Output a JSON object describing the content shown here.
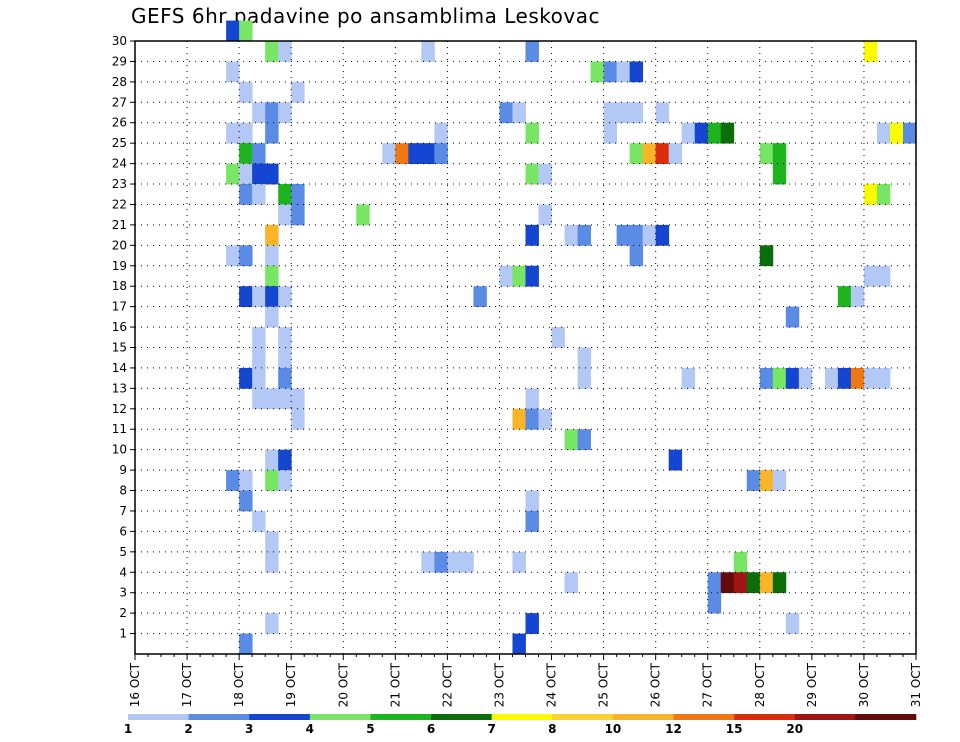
{
  "chart_data": {
    "type": "heatmap",
    "title": "GEFS 6hr padavine po ansamblima Leskovac",
    "xlabel": "",
    "ylabel": "",
    "x_ticks": [
      "16 OCT",
      "17 OCT",
      "18 OCT",
      "19 OCT",
      "20 OCT",
      "21 OCT",
      "22 OCT",
      "23 OCT",
      "24 OCT",
      "25 OCT",
      "26 OCT",
      "27 OCT",
      "28 OCT",
      "29 OCT",
      "30 OCT",
      "31 OCT"
    ],
    "y_ticks": [
      "1",
      "2",
      "3",
      "4",
      "5",
      "6",
      "7",
      "8",
      "9",
      "10",
      "11",
      "12",
      "13",
      "14",
      "15",
      "16",
      "17",
      "18",
      "19",
      "20",
      "21",
      "22",
      "23",
      "24",
      "25",
      "26",
      "27",
      "28",
      "29",
      "30"
    ],
    "xlim_days": [
      16,
      31
    ],
    "ylim": [
      0,
      30
    ],
    "time_step_hours": 6,
    "grid": "dotted",
    "colorbar": {
      "bounds": [
        1,
        2,
        3,
        4,
        5,
        6,
        7,
        8,
        10,
        12,
        15,
        20
      ],
      "labels": [
        "1",
        "2",
        "3",
        "4",
        "5",
        "6",
        "7",
        "8",
        "10",
        "12",
        "15",
        "20"
      ],
      "colors": [
        "#b4c8f5",
        "#5a8ce6",
        "#1446d2",
        "#78e664",
        "#1eb41e",
        "#0a6e0a",
        "#fafa00",
        "#fad232",
        "#fab428",
        "#f07814",
        "#dc2d0a",
        "#a01414",
        "#640a0a"
      ]
    },
    "cells_note": "each cell: [day of October at start of 6-hour step, ensemble member, precipitation class 0-12 (index into colorbar.colors)]",
    "cells": [
      [
        17.75,
        30,
        2
      ],
      [
        18.0,
        30,
        3
      ],
      [
        18.5,
        29,
        3
      ],
      [
        18.75,
        29,
        0
      ],
      [
        21.5,
        29,
        0
      ],
      [
        23.5,
        29,
        1
      ],
      [
        30.0,
        29,
        6
      ],
      [
        17.75,
        28,
        0
      ],
      [
        24.75,
        28,
        3
      ],
      [
        25.0,
        28,
        1
      ],
      [
        25.25,
        28,
        0
      ],
      [
        25.5,
        28,
        2
      ],
      [
        18.0,
        27,
        0
      ],
      [
        19.0,
        27,
        0
      ],
      [
        18.25,
        26,
        0
      ],
      [
        18.5,
        26,
        1
      ],
      [
        18.75,
        26,
        0
      ],
      [
        23.0,
        26,
        1
      ],
      [
        23.25,
        26,
        0
      ],
      [
        25.0,
        26,
        0
      ],
      [
        25.25,
        26,
        0
      ],
      [
        25.5,
        26,
        0
      ],
      [
        26.0,
        26,
        0
      ],
      [
        17.75,
        25,
        0
      ],
      [
        18.0,
        25,
        0
      ],
      [
        18.5,
        25,
        1
      ],
      [
        21.75,
        25,
        0
      ],
      [
        23.5,
        25,
        3
      ],
      [
        25.0,
        25,
        0
      ],
      [
        26.5,
        25,
        0
      ],
      [
        26.75,
        25,
        2
      ],
      [
        27.0,
        25,
        4
      ],
      [
        27.25,
        25,
        5
      ],
      [
        30.25,
        25,
        0
      ],
      [
        30.5,
        25,
        6
      ],
      [
        30.75,
        25,
        1
      ],
      [
        18.0,
        24,
        4
      ],
      [
        18.25,
        24,
        1
      ],
      [
        20.75,
        24,
        0
      ],
      [
        21.0,
        24,
        9
      ],
      [
        21.25,
        24,
        2
      ],
      [
        21.5,
        24,
        2
      ],
      [
        21.75,
        24,
        1
      ],
      [
        25.5,
        24,
        3
      ],
      [
        25.75,
        24,
        8
      ],
      [
        26.0,
        24,
        10
      ],
      [
        26.25,
        24,
        0
      ],
      [
        28.0,
        24,
        3
      ],
      [
        28.25,
        24,
        4
      ],
      [
        17.75,
        23,
        3
      ],
      [
        18.0,
        23,
        0
      ],
      [
        18.25,
        23,
        2
      ],
      [
        18.5,
        23,
        2
      ],
      [
        23.5,
        23,
        3
      ],
      [
        23.75,
        23,
        0
      ],
      [
        28.25,
        23,
        4
      ],
      [
        18.0,
        22,
        1
      ],
      [
        18.25,
        22,
        0
      ],
      [
        18.75,
        22,
        4
      ],
      [
        19.0,
        22,
        1
      ],
      [
        30.0,
        22,
        6
      ],
      [
        30.25,
        22,
        3
      ],
      [
        18.75,
        21,
        0
      ],
      [
        19.0,
        21,
        1
      ],
      [
        20.25,
        21,
        3
      ],
      [
        23.75,
        21,
        0
      ],
      [
        18.5,
        20,
        8
      ],
      [
        23.5,
        20,
        2
      ],
      [
        24.25,
        20,
        0
      ],
      [
        24.5,
        20,
        1
      ],
      [
        25.25,
        20,
        1
      ],
      [
        25.5,
        20,
        1
      ],
      [
        25.75,
        20,
        0
      ],
      [
        26.0,
        20,
        2
      ],
      [
        17.75,
        19,
        0
      ],
      [
        18.0,
        19,
        1
      ],
      [
        18.5,
        19,
        0
      ],
      [
        25.5,
        19,
        1
      ],
      [
        28.0,
        19,
        5
      ],
      [
        18.5,
        18,
        3
      ],
      [
        23.0,
        18,
        0
      ],
      [
        23.25,
        18,
        3
      ],
      [
        23.5,
        18,
        2
      ],
      [
        30.0,
        18,
        0
      ],
      [
        30.25,
        18,
        0
      ],
      [
        18.0,
        17,
        2
      ],
      [
        18.25,
        17,
        0
      ],
      [
        18.5,
        17,
        2
      ],
      [
        18.75,
        17,
        0
      ],
      [
        22.5,
        17,
        1
      ],
      [
        29.5,
        17,
        4
      ],
      [
        29.75,
        17,
        0
      ],
      [
        18.5,
        16,
        0
      ],
      [
        28.5,
        16,
        1
      ],
      [
        18.25,
        15,
        0
      ],
      [
        18.75,
        15,
        0
      ],
      [
        24.0,
        15,
        0
      ],
      [
        18.25,
        14,
        0
      ],
      [
        18.75,
        14,
        0
      ],
      [
        24.5,
        14,
        0
      ],
      [
        18.0,
        13,
        2
      ],
      [
        18.25,
        13,
        0
      ],
      [
        18.75,
        13,
        1
      ],
      [
        24.5,
        13,
        0
      ],
      [
        26.5,
        13,
        0
      ],
      [
        28.0,
        13,
        1
      ],
      [
        28.25,
        13,
        3
      ],
      [
        28.5,
        13,
        2
      ],
      [
        28.75,
        13,
        0
      ],
      [
        29.25,
        13,
        0
      ],
      [
        29.5,
        13,
        2
      ],
      [
        29.75,
        13,
        9
      ],
      [
        30.0,
        13,
        0
      ],
      [
        30.25,
        13,
        0
      ],
      [
        18.25,
        12,
        0
      ],
      [
        18.5,
        12,
        0
      ],
      [
        18.75,
        12,
        0
      ],
      [
        19.0,
        12,
        0
      ],
      [
        23.5,
        12,
        0
      ],
      [
        19.0,
        11,
        0
      ],
      [
        23.25,
        11,
        8
      ],
      [
        23.5,
        11,
        1
      ],
      [
        23.75,
        11,
        0
      ],
      [
        24.25,
        10,
        3
      ],
      [
        24.5,
        10,
        1
      ],
      [
        18.5,
        9,
        0
      ],
      [
        18.75,
        9,
        2
      ],
      [
        26.25,
        9,
        2
      ],
      [
        17.75,
        8,
        1
      ],
      [
        18.0,
        8,
        0
      ],
      [
        18.5,
        8,
        3
      ],
      [
        18.75,
        8,
        0
      ],
      [
        27.75,
        8,
        1
      ],
      [
        28.0,
        8,
        8
      ],
      [
        28.25,
        8,
        0
      ],
      [
        18.0,
        7,
        1
      ],
      [
        23.5,
        7,
        0
      ],
      [
        18.25,
        6,
        0
      ],
      [
        23.5,
        6,
        1
      ],
      [
        18.5,
        5,
        0
      ],
      [
        18.5,
        4,
        0
      ],
      [
        21.5,
        4,
        0
      ],
      [
        21.75,
        4,
        1
      ],
      [
        22.0,
        4,
        0
      ],
      [
        22.25,
        4,
        0
      ],
      [
        23.25,
        4,
        0
      ],
      [
        27.5,
        4,
        3
      ],
      [
        24.25,
        3,
        0
      ],
      [
        27.0,
        3,
        1
      ],
      [
        27.25,
        3,
        12
      ],
      [
        27.5,
        3,
        11
      ],
      [
        27.75,
        3,
        5
      ],
      [
        28.0,
        3,
        8
      ],
      [
        28.25,
        3,
        5
      ],
      [
        27.0,
        2,
        1
      ],
      [
        18.5,
        1,
        0
      ],
      [
        23.5,
        1,
        2
      ],
      [
        28.5,
        1,
        0
      ],
      [
        18.0,
        0,
        1
      ],
      [
        23.25,
        0,
        2
      ]
    ]
  }
}
